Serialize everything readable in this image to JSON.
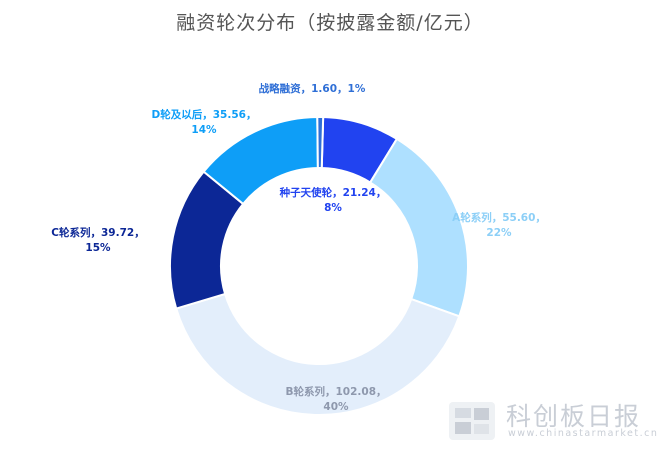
{
  "chart_data": {
    "type": "pie",
    "title": "融资轮次分布（按披露金额/亿元）",
    "slices": [
      {
        "label": "种子天使轮",
        "value": 21.24,
        "percent": "8%",
        "color": "#2143f0",
        "text_color": "#2143f0"
      },
      {
        "label": "A轮系列",
        "value": 55.6,
        "percent": "22%",
        "color": "#aee0ff",
        "text_color": "#8ccff7"
      },
      {
        "label": "B轮系列",
        "value": 102.08,
        "percent": "40%",
        "color": "#e3eefb",
        "text_color": "#8e98ad"
      },
      {
        "label": "C轮系列",
        "value": 39.72,
        "percent": "15%",
        "color": "#0c2796",
        "text_color": "#0c2796"
      },
      {
        "label": "D轮及以后",
        "value": 35.56,
        "percent": "14%",
        "color": "#0e9ef7",
        "text_color": "#0e9ef7"
      },
      {
        "label": "战略融资",
        "value": 1.6,
        "percent": "1%",
        "color": "#2f6fd6",
        "text_color": "#2f6fd6"
      }
    ],
    "label_lines": [
      [
        "种子天使轮，21.24，",
        "8%"
      ],
      [
        "A轮系列，55.60，",
        "22%"
      ],
      [
        "B轮系列，102.08，",
        "40%"
      ],
      [
        "C轮系列，39.72，",
        "15%"
      ],
      [
        "D轮及以后，35.56，",
        "14%"
      ],
      [
        "战略融资，1.60，1%"
      ]
    ]
  },
  "watermark": {
    "name": "科创板日报",
    "url": "www.chinastarmarket.cn",
    "colors": [
      "#c9ced6",
      "#e3e7ec"
    ]
  }
}
